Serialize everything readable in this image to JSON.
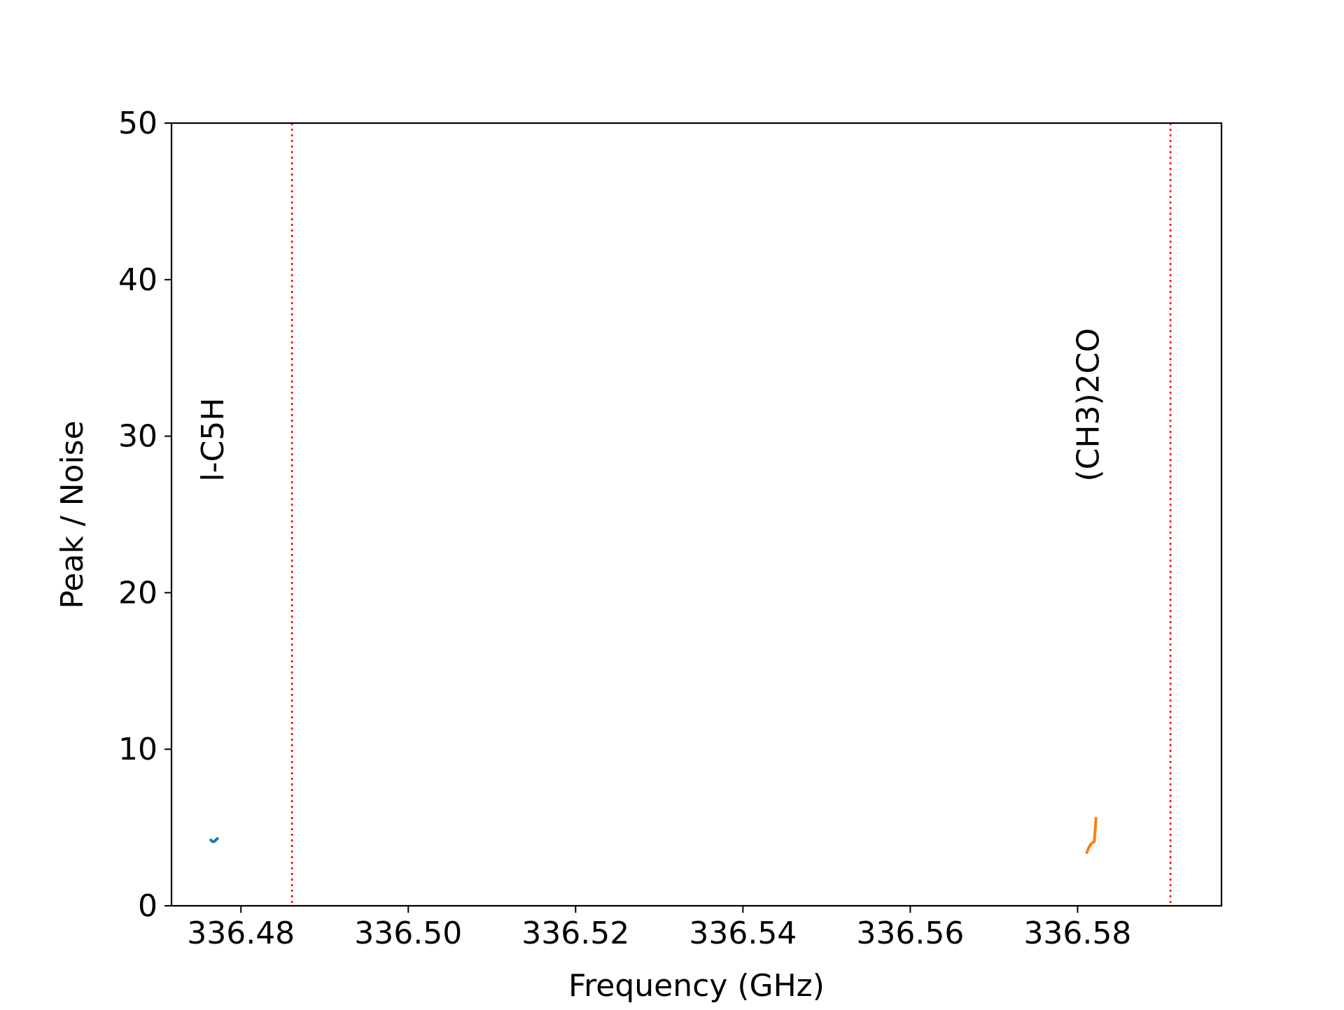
{
  "chart_data": {
    "type": "line",
    "title": "",
    "xlabel": "Frequency (GHz)",
    "ylabel": "Peak / Noise",
    "xlim": [
      336.4717,
      336.5972
    ],
    "ylim": [
      0,
      50
    ],
    "x_ticks": [
      336.48,
      336.5,
      336.52,
      336.54,
      336.56,
      336.58
    ],
    "x_tick_labels": [
      "336.48",
      "336.50",
      "336.52",
      "336.54",
      "336.56",
      "336.58"
    ],
    "y_ticks": [
      0,
      10,
      20,
      30,
      40,
      50
    ],
    "y_tick_labels": [
      "0",
      "10",
      "20",
      "30",
      "40",
      "50"
    ],
    "grid": false,
    "series": [
      {
        "color": "#1f77b4",
        "x": [
          336.4764,
          336.4766,
          336.4768,
          336.477,
          336.4772
        ],
        "y": [
          4.2,
          4.1,
          4.1,
          4.2,
          4.3
        ]
      },
      {
        "color": "#ff7f0e",
        "x": [
          336.5811,
          336.5814,
          336.5817,
          336.582,
          336.5822
        ],
        "y": [
          3.4,
          3.8,
          4.0,
          4.1,
          5.6
        ]
      }
    ],
    "line_markers": [
      {
        "x": 336.4861,
        "label": "l-C5H",
        "color": "#ff0000",
        "label_x": 336.4779,
        "label_y": 27.1
      },
      {
        "x": 336.5911,
        "label": "(CH3)2CO",
        "color": "#ff0000",
        "label_x": 336.5825,
        "label_y": 27.1
      }
    ]
  }
}
